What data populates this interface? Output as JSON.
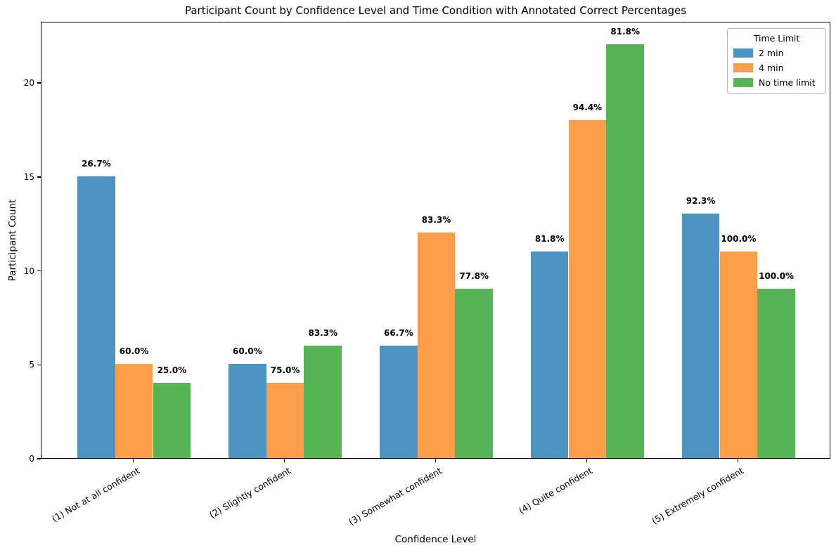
{
  "chart_data": {
    "type": "bar",
    "title": "Participant Count by Confidence Level and Time Condition with Annotated Correct Percentages",
    "xlabel": "Confidence Level",
    "ylabel": "Participant Count",
    "categories": [
      "(1) Not at all confident",
      "(2) Slightly confident",
      "(3) Somewhat confident",
      "(4) Quite confident",
      "(5) Extremely confident"
    ],
    "series": [
      {
        "name": "2 min",
        "color": "#4C95C3",
        "values": [
          15,
          5,
          6,
          11,
          13
        ],
        "annotations": [
          "26.7%",
          "60.0%",
          "66.7%",
          "81.8%",
          "92.3%"
        ]
      },
      {
        "name": "4 min",
        "color": "#FF9E4A",
        "values": [
          5,
          4,
          12,
          18,
          11
        ],
        "annotations": [
          "60.0%",
          "75.0%",
          "83.3%",
          "94.4%",
          "100.0%"
        ]
      },
      {
        "name": "No time limit",
        "color": "#56B356",
        "values": [
          4,
          6,
          9,
          22,
          9
        ],
        "annotations": [
          "25.0%",
          "83.3%",
          "77.8%",
          "81.8%",
          "100.0%"
        ]
      }
    ],
    "legend": {
      "title": "Time Limit",
      "position": "upper right"
    },
    "yticks": [
      0,
      5,
      10,
      15,
      20
    ],
    "ylim": [
      0,
      23.25
    ],
    "xlim": [
      -0.6125,
      4.6125
    ],
    "bar_group_width": 0.75,
    "grid": false,
    "annotation_note": "bold percentage labels above each bar"
  }
}
